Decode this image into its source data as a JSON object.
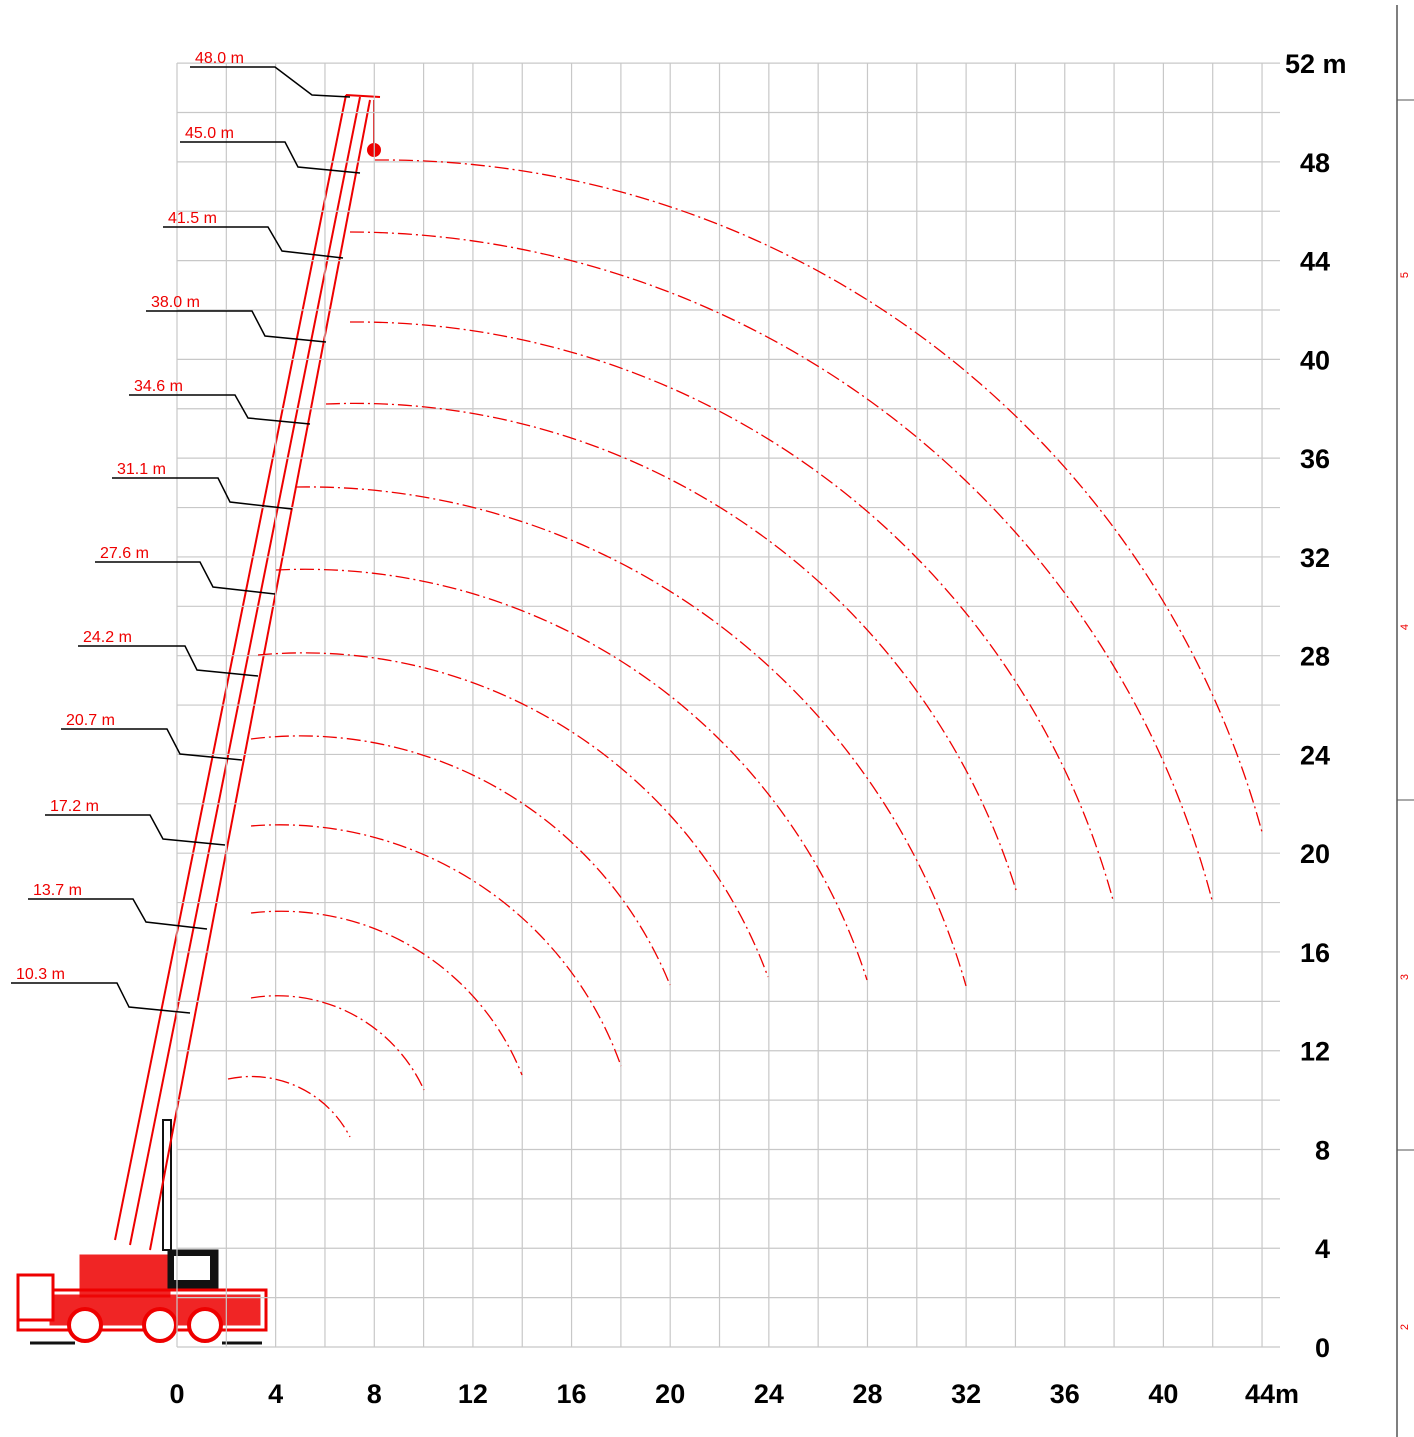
{
  "boom_labels": [
    "48.0 m",
    "45.0 m",
    "41.5 m",
    "38.0 m",
    "34.6 m",
    "31.1 m",
    "27.6 m",
    "24.2 m",
    "20.7 m",
    "17.2 m",
    "13.7 m",
    "10.3 m"
  ],
  "x_axis": {
    "labels": [
      "0",
      "4",
      "8",
      "12",
      "16",
      "20",
      "24",
      "28",
      "32",
      "36",
      "40",
      "44m"
    ]
  },
  "y_axis": {
    "labels": [
      "0",
      "4",
      "8",
      "12",
      "16",
      "20",
      "24",
      "28",
      "32",
      "36",
      "40",
      "44",
      "48",
      "52 m"
    ]
  },
  "side_ruler": {
    "labels": [
      "2",
      "3",
      "4",
      "5"
    ]
  }
}
